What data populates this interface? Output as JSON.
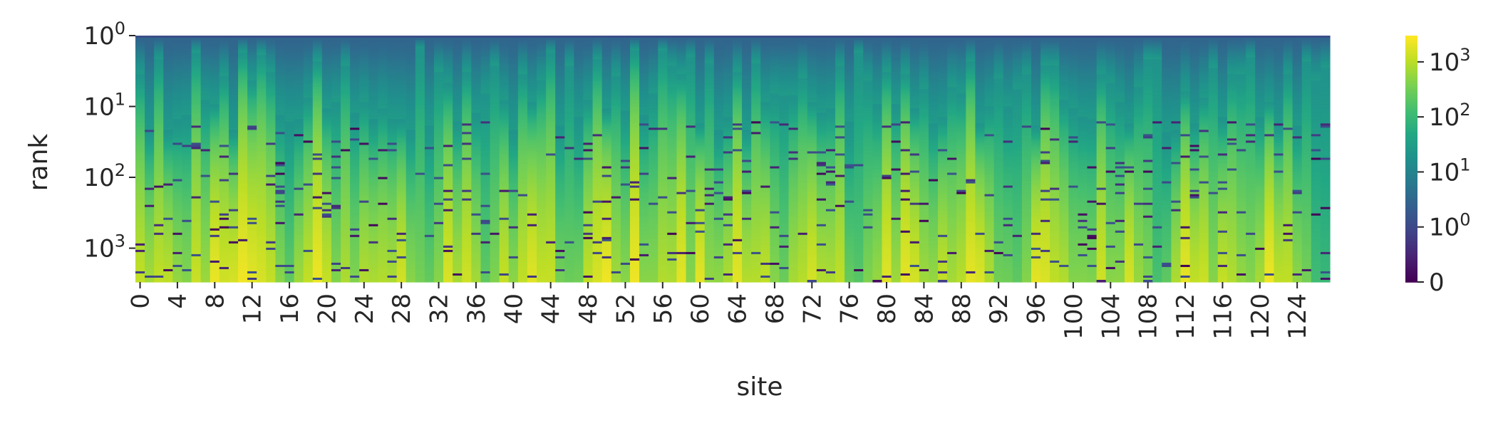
{
  "chart_data": {
    "type": "heatmap",
    "xlabel": "site",
    "ylabel": "rank",
    "x_tick_labels": [
      "0",
      "4",
      "8",
      "12",
      "16",
      "20",
      "24",
      "28",
      "32",
      "36",
      "40",
      "44",
      "48",
      "52",
      "56",
      "60",
      "64",
      "68",
      "72",
      "76",
      "80",
      "84",
      "88",
      "92",
      "96",
      "100",
      "104",
      "108",
      "112",
      "116",
      "120",
      "124"
    ],
    "x_tick_sites": [
      0,
      4,
      8,
      12,
      16,
      20,
      24,
      28,
      32,
      36,
      40,
      44,
      48,
      52,
      56,
      60,
      64,
      68,
      72,
      76,
      80,
      84,
      88,
      92,
      96,
      100,
      104,
      108,
      112,
      116,
      120,
      124
    ],
    "n_sites": 128,
    "y_scale": "log",
    "y_ticks": [
      {
        "base": "10",
        "exp": "0",
        "value": 1
      },
      {
        "base": "10",
        "exp": "1",
        "value": 10
      },
      {
        "base": "10",
        "exp": "2",
        "value": 100
      },
      {
        "base": "10",
        "exp": "3",
        "value": 1000
      }
    ],
    "y_range": [
      1,
      3000
    ],
    "colorbar": {
      "scale": "symlog",
      "ticks": [
        {
          "base": "0",
          "exp": "",
          "value": 0
        },
        {
          "base": "10",
          "exp": "0",
          "value": 1
        },
        {
          "base": "10",
          "exp": "1",
          "value": 10
        },
        {
          "base": "10",
          "exp": "2",
          "value": 100
        },
        {
          "base": "10",
          "exp": "3",
          "value": 1000
        }
      ],
      "max": 3000,
      "colormap": "viridis"
    },
    "column_peaks": [
      0,
      3,
      6,
      8,
      9,
      10,
      11,
      12,
      13,
      18,
      19,
      22,
      25,
      27,
      28,
      33,
      34,
      35,
      39,
      42,
      43,
      49,
      50,
      53,
      57,
      58,
      60,
      64,
      65,
      66,
      71,
      72,
      73,
      74,
      80,
      82,
      83,
      86,
      89,
      90,
      96,
      97,
      99,
      103,
      106,
      112,
      113,
      117,
      121,
      122
    ]
  }
}
